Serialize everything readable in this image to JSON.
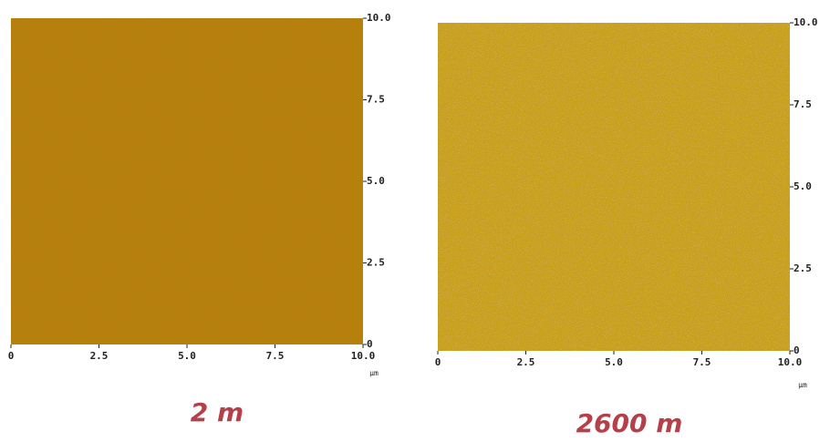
{
  "panels": [
    {
      "unit": "μm",
      "caption": "2 m",
      "xticks": [
        0,
        2.5,
        {
          "value": 5,
          "label": "5.0"
        },
        7.5,
        {
          "value": 10,
          "label": "10.0"
        }
      ],
      "yticks": [
        0,
        2.5,
        {
          "value": 5,
          "label": "5.0"
        },
        7.5,
        {
          "value": 10,
          "label": "10.0"
        }
      ]
    },
    {
      "unit": "μm",
      "caption": "2600 m",
      "xticks": [
        0,
        2.5,
        {
          "value": 5,
          "label": "5.0"
        },
        7.5,
        {
          "value": 10,
          "label": "10.0"
        }
      ],
      "yticks": [
        0,
        2.5,
        {
          "value": 5,
          "label": "5.0"
        },
        7.5,
        {
          "value": 10,
          "label": "10.0"
        }
      ]
    }
  ]
}
